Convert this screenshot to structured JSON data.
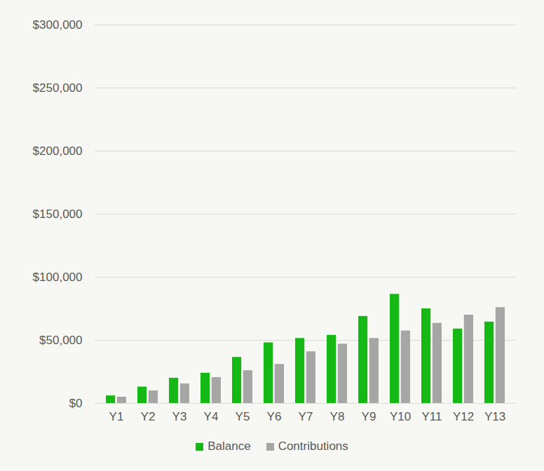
{
  "chart_data": {
    "type": "bar",
    "categories": [
      "Y1",
      "Y2",
      "Y3",
      "Y4",
      "Y5",
      "Y6",
      "Y7",
      "Y8",
      "Y9",
      "Y10",
      "Y11",
      "Y12",
      "Y13"
    ],
    "series": [
      {
        "name": "Balance",
        "color": "#16b816",
        "values": [
          6000,
          13000,
          20000,
          24000,
          36500,
          48000,
          51500,
          54000,
          69000,
          86500,
          75000,
          59000,
          64500
        ]
      },
      {
        "name": "Contributions",
        "color": "#a6a6a6",
        "values": [
          5000,
          10000,
          15500,
          20500,
          26000,
          31000,
          41000,
          47000,
          51500,
          57500,
          63500,
          70000,
          76000
        ]
      }
    ],
    "ylim": [
      0,
      300000
    ],
    "yticks": [
      {
        "value": 0,
        "label": "$0"
      },
      {
        "value": 50000,
        "label": "$50,000"
      },
      {
        "value": 100000,
        "label": "$100,000"
      },
      {
        "value": 150000,
        "label": "$150,000"
      },
      {
        "value": 200000,
        "label": "$200,000"
      },
      {
        "value": 250000,
        "label": "$250,000"
      },
      {
        "value": 300000,
        "label": "$300,000"
      }
    ],
    "grid": true,
    "legend": "bottom"
  }
}
